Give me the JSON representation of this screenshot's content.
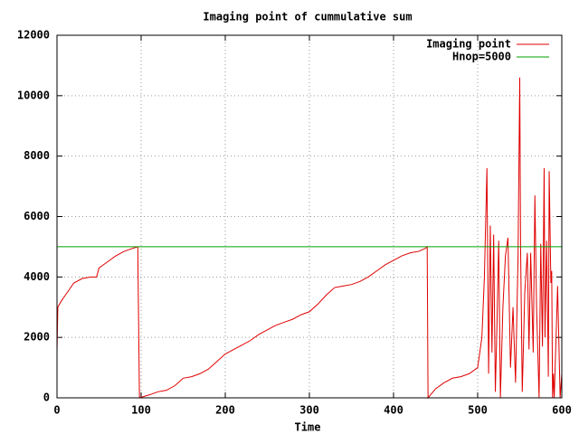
{
  "chart_data": {
    "type": "line",
    "title": "Imaging point of cummulative sum",
    "x_label": "Time",
    "xlim": [
      0,
      600
    ],
    "xticks": [
      0,
      100,
      200,
      300,
      400,
      500,
      600
    ],
    "ylim": [
      0,
      12000
    ],
    "yticks": [
      0,
      2000,
      4000,
      6000,
      8000,
      10000,
      12000
    ],
    "grid": true,
    "legend": "top-right",
    "series": [
      {
        "name": "Imaging point",
        "color": "#e00000",
        "x": [
          0,
          1,
          5,
          10,
          20,
          30,
          40,
          47,
          50,
          60,
          70,
          80,
          90,
          96,
          97,
          98,
          110,
          120,
          130,
          140,
          150,
          160,
          170,
          180,
          190,
          200,
          210,
          220,
          230,
          240,
          250,
          260,
          270,
          280,
          290,
          300,
          310,
          320,
          330,
          340,
          350,
          360,
          370,
          380,
          390,
          400,
          410,
          420,
          430,
          438,
          440,
          441,
          450,
          460,
          470,
          480,
          490,
          500,
          505,
          508,
          511,
          513,
          515,
          517,
          519,
          521,
          523,
          525,
          527,
          530,
          533,
          536,
          539,
          542,
          545,
          548,
          550,
          551,
          553,
          556,
          559,
          561,
          563,
          566,
          568,
          570,
          573,
          575,
          577,
          579,
          580,
          582,
          584,
          585,
          587,
          588,
          589,
          590,
          591,
          595,
          598,
          600
        ],
        "values": [
          1500,
          3000,
          3200,
          3400,
          3800,
          3950,
          4000,
          4000,
          4300,
          4500,
          4700,
          4850,
          4950,
          5000,
          2500,
          0,
          100,
          200,
          250,
          400,
          650,
          700,
          800,
          950,
          1200,
          1450,
          1600,
          1750,
          1900,
          2100,
          2250,
          2400,
          2500,
          2600,
          2750,
          2850,
          3100,
          3400,
          3650,
          3700,
          3750,
          3850,
          4000,
          4200,
          4400,
          4550,
          4700,
          4800,
          4850,
          4950,
          5000,
          0,
          300,
          500,
          650,
          700,
          800,
          1000,
          2000,
          4000,
          7600,
          800,
          5700,
          1500,
          5400,
          200,
          2500,
          5200,
          0,
          3000,
          4700,
          5300,
          1000,
          3000,
          500,
          4700,
          10600,
          5000,
          200,
          3500,
          4800,
          1600,
          4800,
          1500,
          6700,
          3000,
          0,
          5100,
          1700,
          7600,
          2000,
          5200,
          700,
          7500,
          3800,
          4200,
          0,
          800,
          0,
          3700,
          0,
          800
        ]
      },
      {
        "name": "Hnop=5000",
        "color": "#00a000",
        "x": [
          0,
          600
        ],
        "values": [
          5000,
          5000
        ]
      }
    ]
  }
}
